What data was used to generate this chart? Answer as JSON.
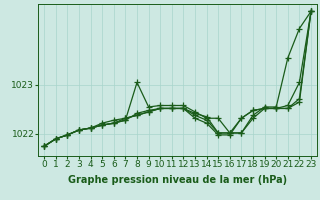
{
  "xlabel": "Graphe pression niveau de la mer (hPa)",
  "xlim": [
    -0.5,
    23.5
  ],
  "ylim": [
    1021.55,
    1024.65
  ],
  "yticks": [
    1022,
    1023
  ],
  "xticks": [
    0,
    1,
    2,
    3,
    4,
    5,
    6,
    7,
    8,
    9,
    10,
    11,
    12,
    13,
    14,
    15,
    16,
    17,
    18,
    19,
    20,
    21,
    22,
    23
  ],
  "bg_color": "#cde8e2",
  "grid_color": "#a8d5cc",
  "line_color": "#1a5c1a",
  "lines": [
    [
      1021.75,
      1021.9,
      1021.98,
      1022.08,
      1022.12,
      1022.18,
      1022.22,
      1022.28,
      1023.05,
      1022.55,
      1022.58,
      1022.58,
      1022.58,
      1022.45,
      1022.32,
      1022.32,
      1022.02,
      1022.02,
      1022.38,
      1022.55,
      1022.55,
      1023.55,
      1024.15,
      1024.5
    ],
    [
      1021.75,
      1021.9,
      1021.98,
      1022.08,
      1022.12,
      1022.18,
      1022.22,
      1022.28,
      1022.42,
      1022.48,
      1022.52,
      1022.52,
      1022.52,
      1022.42,
      1022.35,
      1022.02,
      1022.02,
      1022.02,
      1022.32,
      1022.52,
      1022.52,
      1022.58,
      1023.05,
      1024.5
    ],
    [
      1021.75,
      1021.9,
      1021.98,
      1022.08,
      1022.12,
      1022.18,
      1022.22,
      1022.32,
      1022.38,
      1022.45,
      1022.52,
      1022.52,
      1022.52,
      1022.38,
      1022.28,
      1022.02,
      1022.02,
      1022.32,
      1022.48,
      1022.52,
      1022.52,
      1022.52,
      1022.65,
      1024.5
    ],
    [
      1021.75,
      1021.9,
      1021.98,
      1022.08,
      1022.12,
      1022.22,
      1022.28,
      1022.32,
      1022.38,
      1022.45,
      1022.52,
      1022.52,
      1022.52,
      1022.32,
      1022.22,
      1021.98,
      1021.98,
      1022.32,
      1022.48,
      1022.52,
      1022.52,
      1022.52,
      1022.72,
      1024.5
    ]
  ],
  "marker": "+",
  "markersize": 4,
  "linewidth": 0.9,
  "fontsize_xlabel": 7,
  "fontsize_tick": 6.5
}
